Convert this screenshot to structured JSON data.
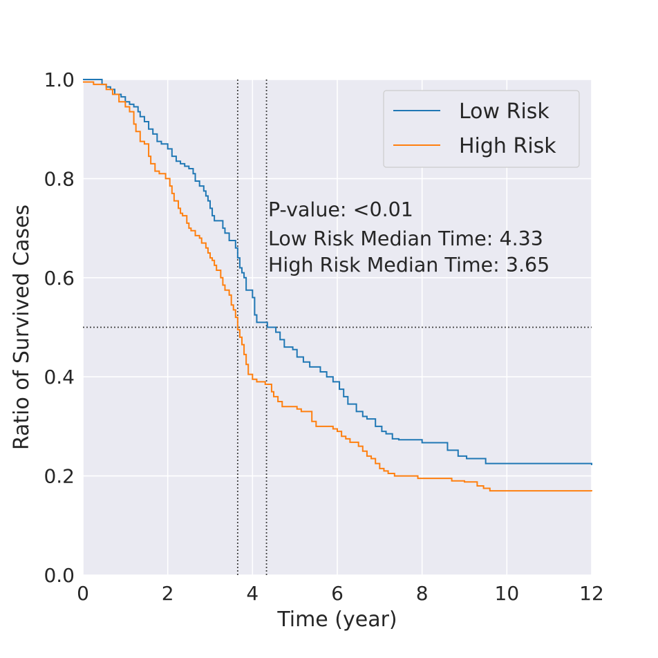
{
  "chart_data": {
    "type": "line",
    "title": "",
    "xlabel": "Time (year)",
    "ylabel": "Ratio of Survived Cases",
    "xlim": [
      0,
      12
    ],
    "ylim": [
      0,
      1
    ],
    "x_ticks": [
      0,
      2,
      4,
      6,
      8,
      10,
      12
    ],
    "y_ticks": [
      "0.0",
      "0.2",
      "0.4",
      "0.6",
      "0.8",
      "1.0"
    ],
    "grid": true,
    "legend_position": "top-right",
    "reference_lines": {
      "horizontal_y": 0.5,
      "vertical_x": [
        3.65,
        4.33
      ]
    },
    "annotations": [
      "P-value: <0.01",
      "Low Risk Median Time: 4.33",
      "High Risk Median Time: 3.65"
    ],
    "series": [
      {
        "name": "Low Risk",
        "color": "#1f77b4",
        "step": "post",
        "points": [
          [
            0,
            1.0
          ],
          [
            0.45,
            0.99
          ],
          [
            0.55,
            0.985
          ],
          [
            0.65,
            0.98
          ],
          [
            0.75,
            0.97
          ],
          [
            0.9,
            0.965
          ],
          [
            1.0,
            0.955
          ],
          [
            1.1,
            0.95
          ],
          [
            1.2,
            0.945
          ],
          [
            1.3,
            0.935
          ],
          [
            1.35,
            0.925
          ],
          [
            1.45,
            0.915
          ],
          [
            1.55,
            0.9
          ],
          [
            1.65,
            0.89
          ],
          [
            1.75,
            0.875
          ],
          [
            1.85,
            0.87
          ],
          [
            2.0,
            0.86
          ],
          [
            2.1,
            0.845
          ],
          [
            2.2,
            0.835
          ],
          [
            2.3,
            0.83
          ],
          [
            2.4,
            0.825
          ],
          [
            2.5,
            0.82
          ],
          [
            2.6,
            0.81
          ],
          [
            2.65,
            0.795
          ],
          [
            2.75,
            0.785
          ],
          [
            2.85,
            0.775
          ],
          [
            2.9,
            0.765
          ],
          [
            2.95,
            0.755
          ],
          [
            3.0,
            0.74
          ],
          [
            3.05,
            0.725
          ],
          [
            3.1,
            0.715
          ],
          [
            3.3,
            0.7
          ],
          [
            3.35,
            0.69
          ],
          [
            3.45,
            0.675
          ],
          [
            3.6,
            0.66
          ],
          [
            3.65,
            0.64
          ],
          [
            3.7,
            0.62
          ],
          [
            3.75,
            0.61
          ],
          [
            3.8,
            0.6
          ],
          [
            3.85,
            0.575
          ],
          [
            4.0,
            0.56
          ],
          [
            4.05,
            0.525
          ],
          [
            4.1,
            0.51
          ],
          [
            4.35,
            0.5
          ],
          [
            4.55,
            0.49
          ],
          [
            4.65,
            0.475
          ],
          [
            4.75,
            0.46
          ],
          [
            4.95,
            0.455
          ],
          [
            5.05,
            0.44
          ],
          [
            5.2,
            0.43
          ],
          [
            5.35,
            0.42
          ],
          [
            5.6,
            0.41
          ],
          [
            5.75,
            0.4
          ],
          [
            5.9,
            0.39
          ],
          [
            6.05,
            0.375
          ],
          [
            6.15,
            0.36
          ],
          [
            6.25,
            0.345
          ],
          [
            6.45,
            0.33
          ],
          [
            6.6,
            0.32
          ],
          [
            6.7,
            0.315
          ],
          [
            6.9,
            0.3
          ],
          [
            7.05,
            0.29
          ],
          [
            7.15,
            0.285
          ],
          [
            7.3,
            0.275
          ],
          [
            7.45,
            0.273
          ],
          [
            8.0,
            0.267
          ],
          [
            8.6,
            0.252
          ],
          [
            8.85,
            0.24
          ],
          [
            9.05,
            0.235
          ],
          [
            9.5,
            0.225
          ],
          [
            12.0,
            0.222
          ]
        ]
      },
      {
        "name": "High Risk",
        "color": "#ff7f0e",
        "step": "post",
        "points": [
          [
            0,
            0.995
          ],
          [
            0.25,
            0.99
          ],
          [
            0.55,
            0.98
          ],
          [
            0.7,
            0.97
          ],
          [
            0.85,
            0.955
          ],
          [
            1.0,
            0.945
          ],
          [
            1.1,
            0.935
          ],
          [
            1.2,
            0.91
          ],
          [
            1.25,
            0.895
          ],
          [
            1.35,
            0.875
          ],
          [
            1.45,
            0.87
          ],
          [
            1.55,
            0.845
          ],
          [
            1.6,
            0.83
          ],
          [
            1.7,
            0.815
          ],
          [
            1.8,
            0.81
          ],
          [
            1.95,
            0.8
          ],
          [
            2.05,
            0.785
          ],
          [
            2.1,
            0.77
          ],
          [
            2.15,
            0.755
          ],
          [
            2.25,
            0.74
          ],
          [
            2.3,
            0.73
          ],
          [
            2.35,
            0.725
          ],
          [
            2.45,
            0.71
          ],
          [
            2.5,
            0.7
          ],
          [
            2.55,
            0.695
          ],
          [
            2.65,
            0.685
          ],
          [
            2.75,
            0.68
          ],
          [
            2.8,
            0.67
          ],
          [
            2.9,
            0.66
          ],
          [
            2.95,
            0.65
          ],
          [
            3.0,
            0.64
          ],
          [
            3.05,
            0.635
          ],
          [
            3.1,
            0.625
          ],
          [
            3.15,
            0.615
          ],
          [
            3.25,
            0.6
          ],
          [
            3.3,
            0.585
          ],
          [
            3.35,
            0.575
          ],
          [
            3.45,
            0.565
          ],
          [
            3.5,
            0.545
          ],
          [
            3.55,
            0.535
          ],
          [
            3.6,
            0.52
          ],
          [
            3.65,
            0.495
          ],
          [
            3.7,
            0.48
          ],
          [
            3.75,
            0.465
          ],
          [
            3.8,
            0.445
          ],
          [
            3.85,
            0.425
          ],
          [
            3.9,
            0.405
          ],
          [
            4.0,
            0.395
          ],
          [
            4.1,
            0.39
          ],
          [
            4.3,
            0.385
          ],
          [
            4.45,
            0.37
          ],
          [
            4.5,
            0.36
          ],
          [
            4.6,
            0.35
          ],
          [
            4.7,
            0.34
          ],
          [
            5.05,
            0.335
          ],
          [
            5.15,
            0.33
          ],
          [
            5.4,
            0.31
          ],
          [
            5.5,
            0.3
          ],
          [
            5.9,
            0.295
          ],
          [
            6.0,
            0.29
          ],
          [
            6.1,
            0.28
          ],
          [
            6.2,
            0.275
          ],
          [
            6.3,
            0.268
          ],
          [
            6.5,
            0.26
          ],
          [
            6.6,
            0.25
          ],
          [
            6.7,
            0.24
          ],
          [
            6.8,
            0.235
          ],
          [
            6.9,
            0.225
          ],
          [
            7.0,
            0.215
          ],
          [
            7.1,
            0.21
          ],
          [
            7.2,
            0.205
          ],
          [
            7.35,
            0.2
          ],
          [
            7.9,
            0.195
          ],
          [
            8.7,
            0.19
          ],
          [
            9.0,
            0.188
          ],
          [
            9.3,
            0.18
          ],
          [
            9.45,
            0.175
          ],
          [
            9.6,
            0.17
          ],
          [
            12.0,
            0.169
          ]
        ]
      }
    ]
  }
}
